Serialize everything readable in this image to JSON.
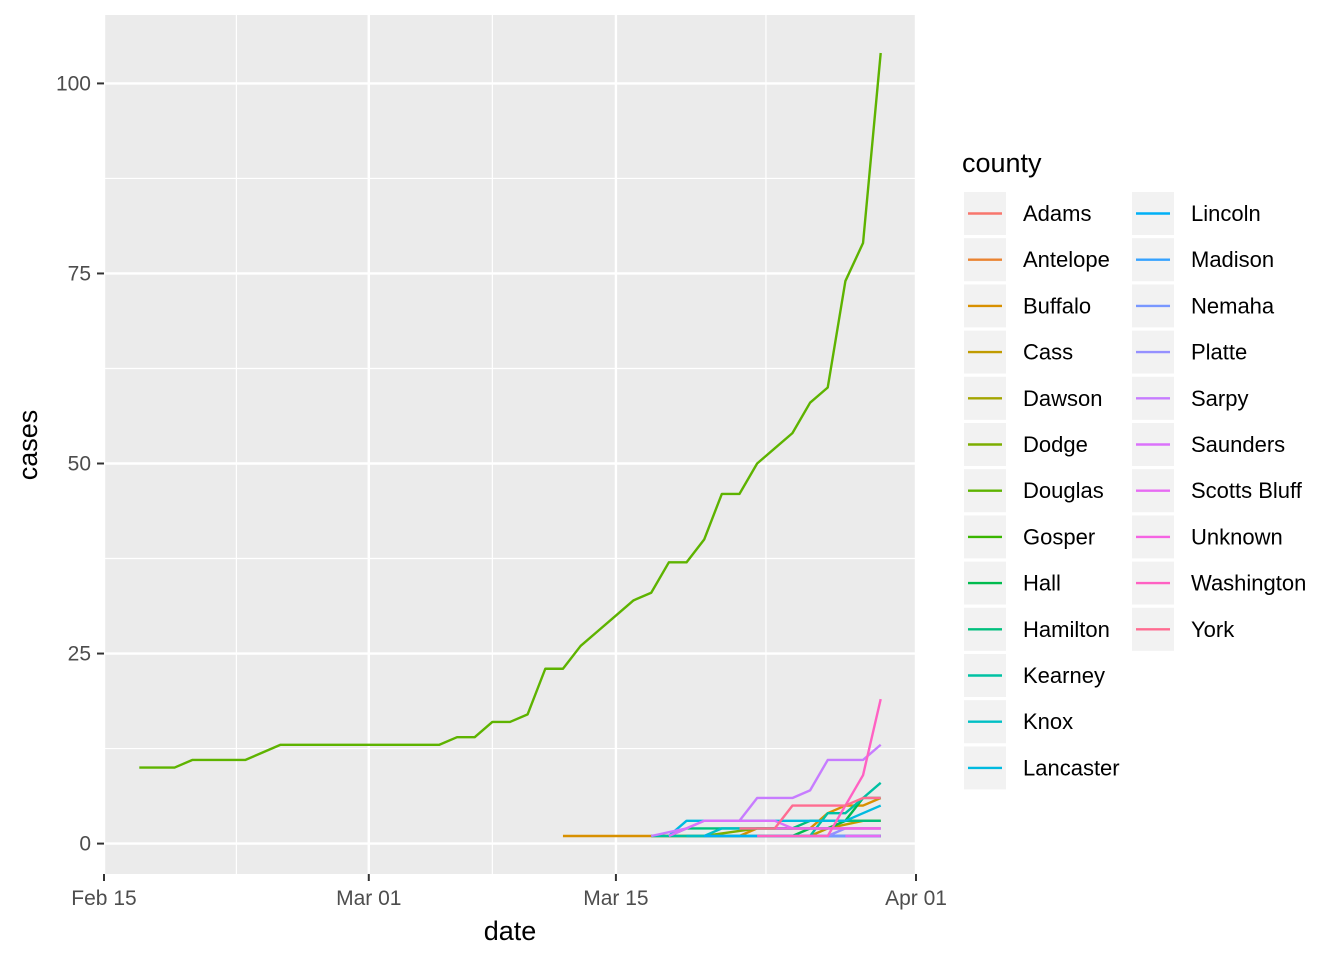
{
  "chart_data": {
    "type": "line",
    "xlabel": "date",
    "ylabel": "cases",
    "x_ticks": [
      "Feb 15",
      "Mar 01",
      "Mar 15",
      "Apr 01"
    ],
    "y_ticks": [
      0,
      25,
      50,
      75,
      100
    ],
    "xlim": [
      "2020-02-15",
      "2020-04-01"
    ],
    "ylim": [
      -4,
      109
    ],
    "grid": true,
    "legend_title": "county",
    "legend_position": "right",
    "series": [
      {
        "name": "Adams",
        "color": "#F8766D",
        "points": [
          [
            "2020-03-27",
            1
          ],
          [
            "2020-03-30",
            1
          ]
        ]
      },
      {
        "name": "Antelope",
        "color": "#EA8331",
        "points": [
          [
            "2020-03-28",
            1
          ],
          [
            "2020-03-30",
            1
          ]
        ]
      },
      {
        "name": "Buffalo",
        "color": "#D89000",
        "points": [
          [
            "2020-03-12",
            1
          ],
          [
            "2020-03-20",
            1
          ],
          [
            "2020-03-22",
            1
          ],
          [
            "2020-03-23",
            2
          ],
          [
            "2020-03-26",
            2
          ],
          [
            "2020-03-27",
            4
          ],
          [
            "2020-03-28",
            5
          ],
          [
            "2020-03-29",
            5
          ],
          [
            "2020-03-30",
            6
          ]
        ]
      },
      {
        "name": "Cass",
        "color": "#C09B00",
        "points": [
          [
            "2020-03-17",
            1
          ],
          [
            "2020-03-26",
            1
          ],
          [
            "2020-03-27",
            2
          ],
          [
            "2020-03-29",
            3
          ],
          [
            "2020-03-30",
            3
          ]
        ]
      },
      {
        "name": "Dawson",
        "color": "#A3A500",
        "points": [
          [
            "2020-03-28",
            1
          ],
          [
            "2020-03-30",
            1
          ]
        ]
      },
      {
        "name": "Dodge",
        "color": "#7CAE00",
        "points": [
          [
            "2020-03-20",
            1
          ],
          [
            "2020-03-23",
            2
          ],
          [
            "2020-03-27",
            2
          ],
          [
            "2020-03-28",
            3
          ],
          [
            "2020-03-29",
            3
          ],
          [
            "2020-03-30",
            3
          ]
        ]
      },
      {
        "name": "Douglas",
        "color": "#5EB300",
        "points": [
          [
            "2020-02-17",
            10
          ],
          [
            "2020-02-19",
            10
          ],
          [
            "2020-02-20",
            11
          ],
          [
            "2020-02-23",
            11
          ],
          [
            "2020-02-25",
            13
          ],
          [
            "2020-03-05",
            13
          ],
          [
            "2020-03-06",
            14
          ],
          [
            "2020-03-07",
            14
          ],
          [
            "2020-03-08",
            16
          ],
          [
            "2020-03-09",
            16
          ],
          [
            "2020-03-10",
            17
          ],
          [
            "2020-03-11",
            23
          ],
          [
            "2020-03-12",
            23
          ],
          [
            "2020-03-13",
            26
          ],
          [
            "2020-03-14",
            28
          ],
          [
            "2020-03-15",
            30
          ],
          [
            "2020-03-16",
            32
          ],
          [
            "2020-03-17",
            33
          ],
          [
            "2020-03-18",
            37
          ],
          [
            "2020-03-19",
            37
          ],
          [
            "2020-03-20",
            40
          ],
          [
            "2020-03-21",
            46
          ],
          [
            "2020-03-22",
            46
          ],
          [
            "2020-03-23",
            50
          ],
          [
            "2020-03-24",
            52
          ],
          [
            "2020-03-25",
            54
          ],
          [
            "2020-03-26",
            58
          ],
          [
            "2020-03-27",
            60
          ],
          [
            "2020-03-28",
            74
          ],
          [
            "2020-03-29",
            79
          ],
          [
            "2020-03-30",
            104
          ]
        ]
      },
      {
        "name": "Gosper",
        "color": "#39B600",
        "points": [
          [
            "2020-03-28",
            1
          ],
          [
            "2020-03-30",
            1
          ]
        ]
      },
      {
        "name": "Hall",
        "color": "#00BB4E",
        "points": [
          [
            "2020-03-25",
            1
          ],
          [
            "2020-03-26",
            2
          ],
          [
            "2020-03-27",
            2
          ],
          [
            "2020-03-28",
            3
          ],
          [
            "2020-03-29",
            6
          ],
          [
            "2020-03-30",
            6
          ]
        ]
      },
      {
        "name": "Hamilton",
        "color": "#00BF7D",
        "points": [
          [
            "2020-03-18",
            1
          ],
          [
            "2020-03-19",
            2
          ],
          [
            "2020-03-25",
            2
          ],
          [
            "2020-03-26",
            3
          ],
          [
            "2020-03-30",
            3
          ]
        ]
      },
      {
        "name": "Kearney",
        "color": "#00C1A3",
        "points": [
          [
            "2020-03-17",
            1
          ],
          [
            "2020-03-26",
            1
          ],
          [
            "2020-03-27",
            4
          ],
          [
            "2020-03-28",
            4
          ],
          [
            "2020-03-29",
            6
          ],
          [
            "2020-03-30",
            8
          ]
        ]
      },
      {
        "name": "Knox",
        "color": "#00BFC4",
        "points": [
          [
            "2020-03-19",
            1
          ],
          [
            "2020-03-20",
            1
          ],
          [
            "2020-03-21",
            2
          ],
          [
            "2020-03-30",
            2
          ]
        ]
      },
      {
        "name": "Lancaster",
        "color": "#00BAE0",
        "points": [
          [
            "2020-03-18",
            1
          ],
          [
            "2020-03-19",
            3
          ],
          [
            "2020-03-26",
            3
          ],
          [
            "2020-03-27",
            3
          ],
          [
            "2020-03-28",
            3
          ],
          [
            "2020-03-29",
            4
          ],
          [
            "2020-03-30",
            5
          ]
        ]
      },
      {
        "name": "Lincoln",
        "color": "#00B0F6",
        "points": [
          [
            "2020-03-20",
            1
          ],
          [
            "2020-03-30",
            1
          ]
        ]
      },
      {
        "name": "Madison",
        "color": "#35A2FF",
        "points": [
          [
            "2020-03-24",
            1
          ],
          [
            "2020-03-30",
            1
          ]
        ]
      },
      {
        "name": "Nemaha",
        "color": "#7997FF",
        "points": [
          [
            "2020-03-26",
            1
          ],
          [
            "2020-03-30",
            1
          ]
        ]
      },
      {
        "name": "Platte",
        "color": "#9590FF",
        "points": [
          [
            "2020-03-27",
            1
          ],
          [
            "2020-03-28",
            2
          ],
          [
            "2020-03-30",
            2
          ]
        ]
      },
      {
        "name": "Sarpy",
        "color": "#C77CFF",
        "points": [
          [
            "2020-03-17",
            1
          ],
          [
            "2020-03-19",
            2
          ],
          [
            "2020-03-20",
            3
          ],
          [
            "2020-03-22",
            3
          ],
          [
            "2020-03-23",
            6
          ],
          [
            "2020-03-25",
            6
          ],
          [
            "2020-03-26",
            7
          ],
          [
            "2020-03-27",
            11
          ],
          [
            "2020-03-29",
            11
          ],
          [
            "2020-03-30",
            13
          ]
        ]
      },
      {
        "name": "Saunders",
        "color": "#DB72FB",
        "points": [
          [
            "2020-03-18",
            1
          ],
          [
            "2020-03-20",
            3
          ],
          [
            "2020-03-24",
            3
          ],
          [
            "2020-03-25",
            2
          ],
          [
            "2020-03-30",
            2
          ]
        ]
      },
      {
        "name": "Scotts Bluff",
        "color": "#E76BF3",
        "points": [
          [
            "2020-03-28",
            1
          ],
          [
            "2020-03-30",
            1
          ]
        ]
      },
      {
        "name": "Unknown",
        "color": "#F564E3",
        "points": [
          [
            "2020-03-24",
            2
          ],
          [
            "2020-03-30",
            2
          ]
        ]
      },
      {
        "name": "Washington",
        "color": "#FF61C3",
        "points": [
          [
            "2020-03-23",
            1
          ],
          [
            "2020-03-27",
            1
          ],
          [
            "2020-03-28",
            5
          ],
          [
            "2020-03-29",
            9
          ],
          [
            "2020-03-30",
            19
          ]
        ]
      },
      {
        "name": "York",
        "color": "#FF6C91",
        "points": [
          [
            "2020-03-22",
            2
          ],
          [
            "2020-03-24",
            2
          ],
          [
            "2020-03-25",
            5
          ],
          [
            "2020-03-28",
            5
          ],
          [
            "2020-03-29",
            6
          ],
          [
            "2020-03-30",
            6
          ]
        ]
      }
    ]
  }
}
